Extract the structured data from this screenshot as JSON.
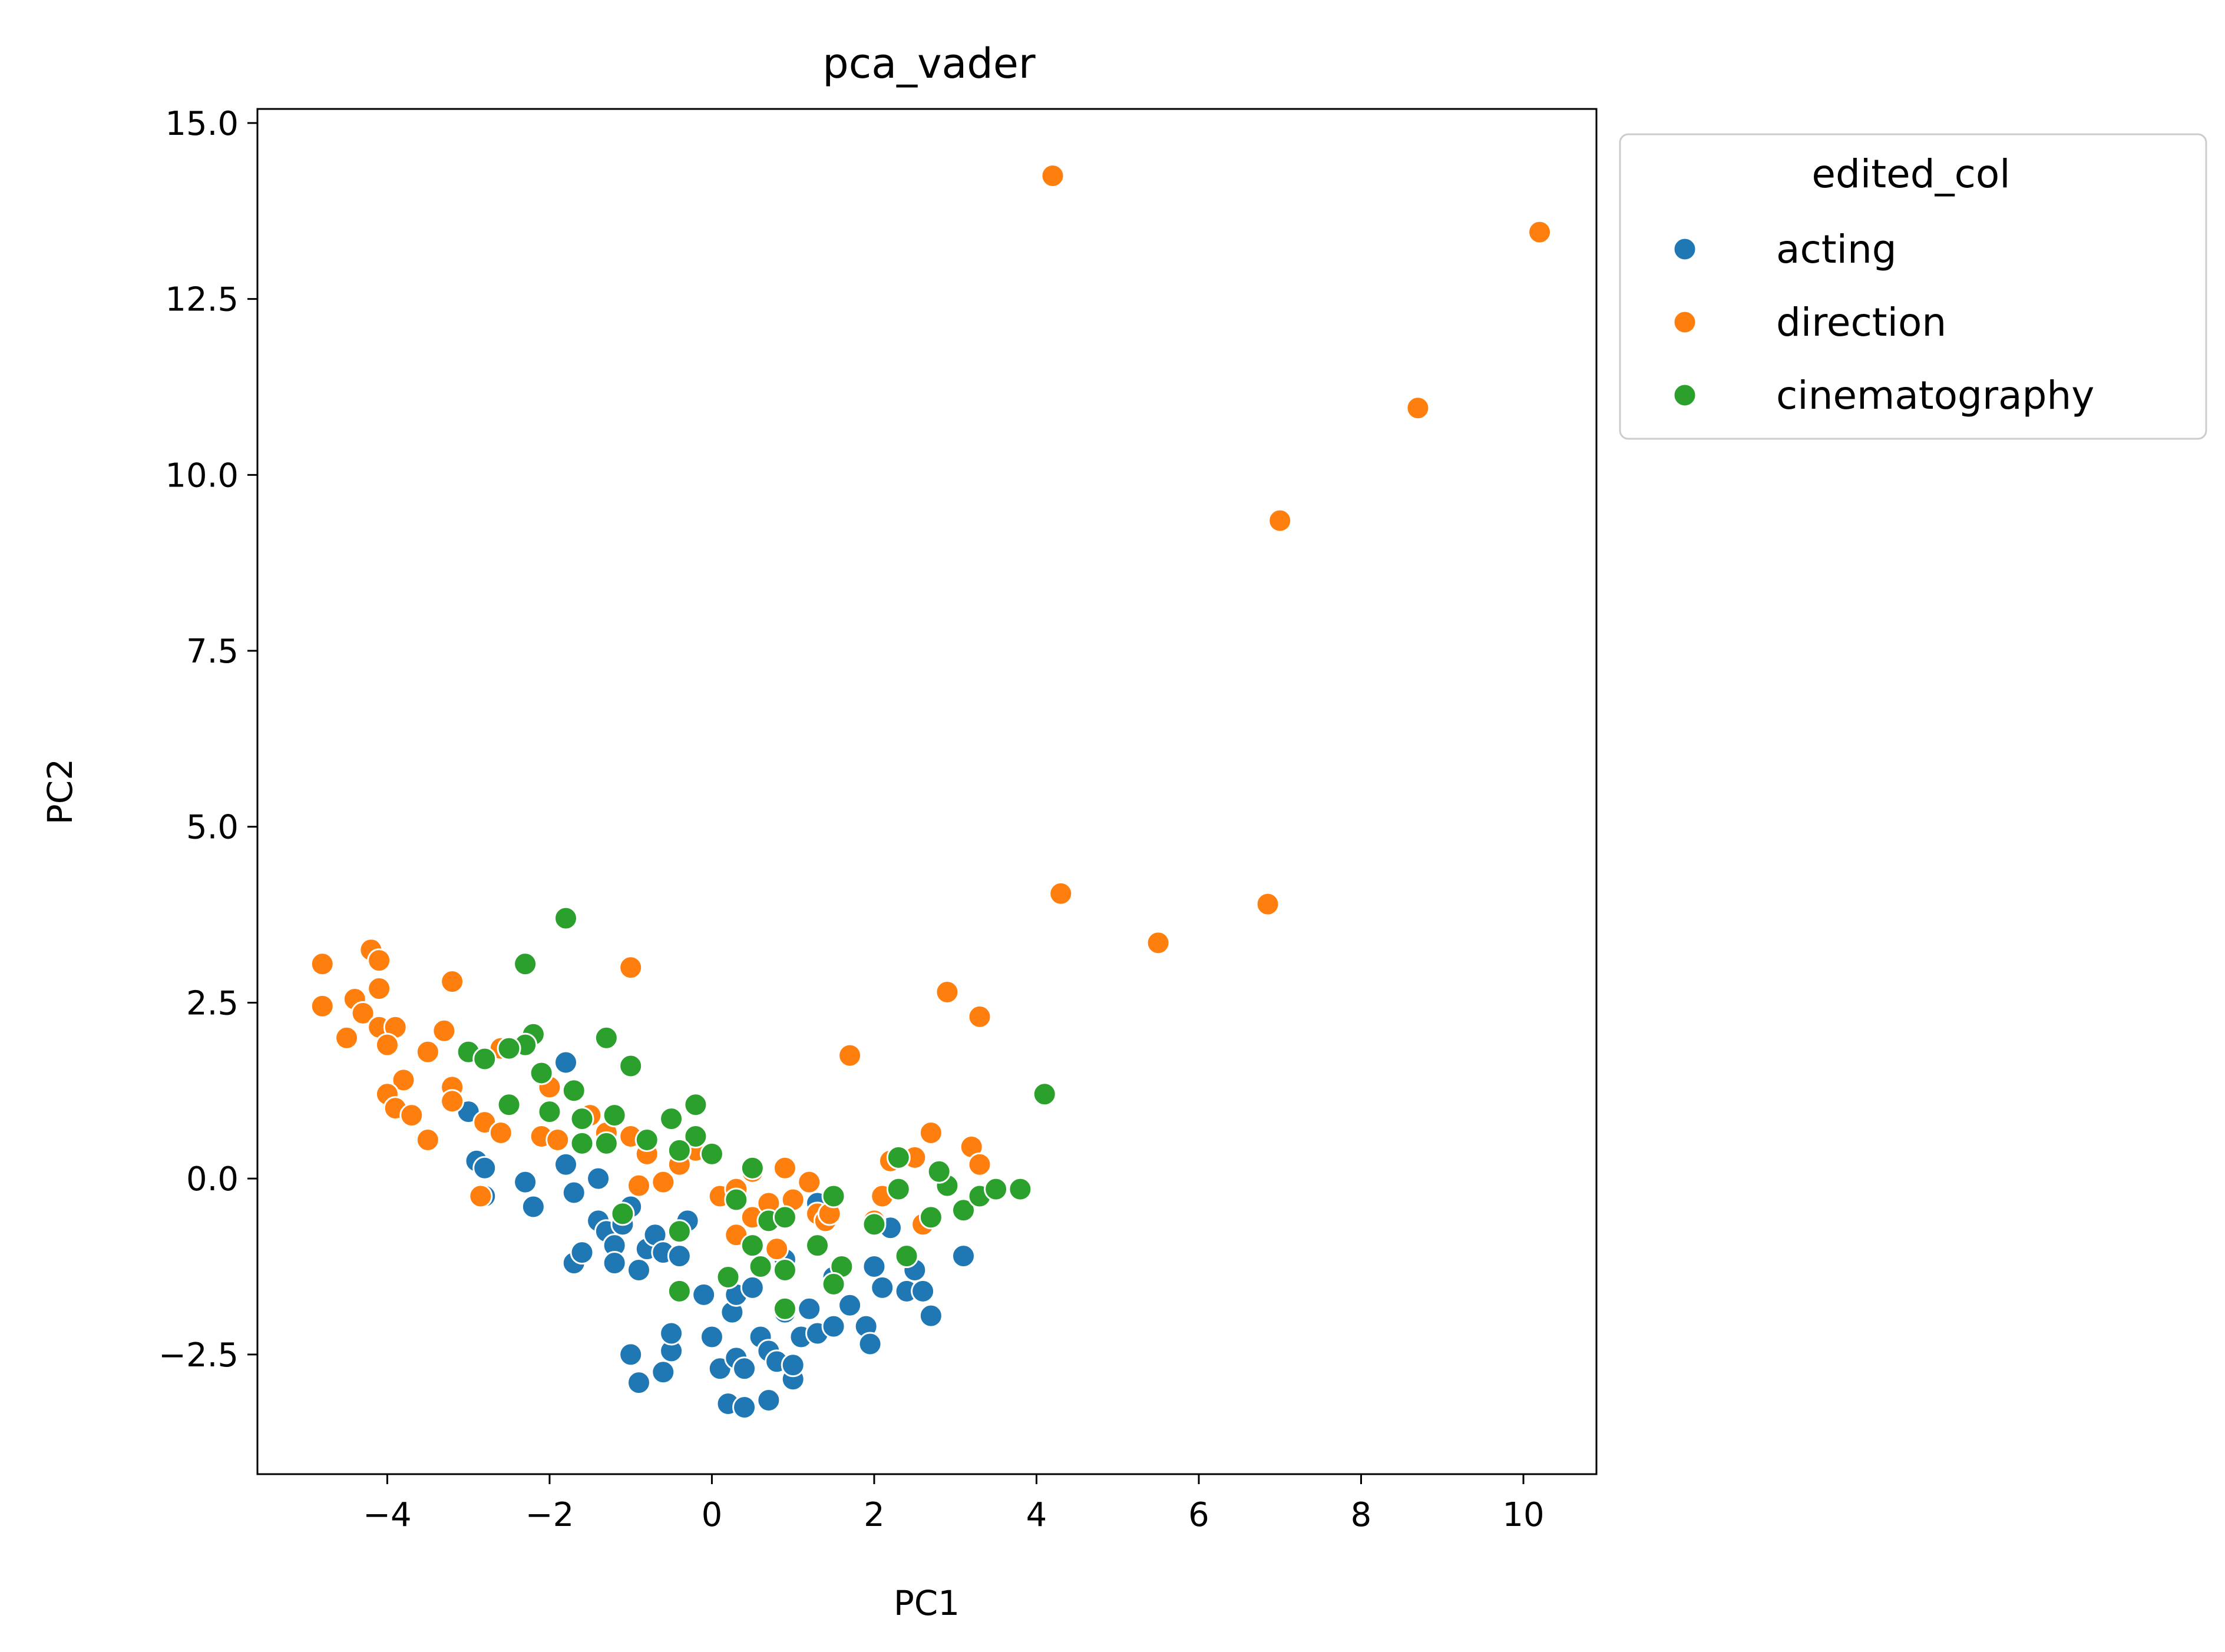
{
  "chart_data": {
    "type": "scatter",
    "title": "pca_vader",
    "xlabel": "PC1",
    "ylabel": "PC2",
    "xlim": [
      -5.6,
      10.9
    ],
    "ylim": [
      -4.2,
      15.2
    ],
    "xticks": [
      -4,
      -2,
      0,
      2,
      4,
      6,
      8,
      10
    ],
    "xtick_labels": [
      "−4",
      "−2",
      "0",
      "2",
      "4",
      "6",
      "8",
      "10"
    ],
    "yticks": [
      -2.5,
      0.0,
      2.5,
      5.0,
      7.5,
      10.0,
      12.5,
      15.0
    ],
    "ytick_labels": [
      "−2.5",
      "0.0",
      "2.5",
      "5.0",
      "7.5",
      "10.0",
      "12.5",
      "15.0"
    ],
    "grid": false,
    "legend": {
      "title": "edited_col",
      "placement": "outside-upper-right"
    },
    "series": [
      {
        "name": "acting",
        "color": "#1f77b4",
        "points": [
          [
            -3.0,
            0.95
          ],
          [
            -2.9,
            0.25
          ],
          [
            -2.8,
            -0.25
          ],
          [
            -2.8,
            0.15
          ],
          [
            -2.3,
            -0.05
          ],
          [
            -2.2,
            -0.4
          ],
          [
            -1.8,
            1.65
          ],
          [
            -1.8,
            0.2
          ],
          [
            -1.7,
            -1.2
          ],
          [
            -1.6,
            -1.05
          ],
          [
            -1.7,
            -0.2
          ],
          [
            -1.4,
            -0.6
          ],
          [
            -1.4,
            0.0
          ],
          [
            -1.3,
            -0.75
          ],
          [
            -1.2,
            -0.95
          ],
          [
            -1.2,
            -1.2
          ],
          [
            -1.1,
            -0.65
          ],
          [
            -1.0,
            -0.4
          ],
          [
            -1.0,
            -2.5
          ],
          [
            -0.9,
            -2.9
          ],
          [
            -0.9,
            -1.3
          ],
          [
            -0.8,
            -1.0
          ],
          [
            -0.7,
            -0.8
          ],
          [
            -0.6,
            -1.05
          ],
          [
            -0.6,
            -2.75
          ],
          [
            -0.5,
            -2.45
          ],
          [
            -0.5,
            -2.2
          ],
          [
            -0.4,
            -1.1
          ],
          [
            -0.3,
            -0.6
          ],
          [
            -0.1,
            -1.65
          ],
          [
            0.0,
            -2.25
          ],
          [
            0.1,
            -2.7
          ],
          [
            0.2,
            -3.2
          ],
          [
            0.25,
            -1.9
          ],
          [
            0.3,
            -1.65
          ],
          [
            0.3,
            -2.55
          ],
          [
            0.4,
            -3.25
          ],
          [
            0.4,
            -2.7
          ],
          [
            0.5,
            -1.55
          ],
          [
            0.55,
            -0.55
          ],
          [
            0.6,
            -2.25
          ],
          [
            0.7,
            -2.45
          ],
          [
            0.7,
            -3.15
          ],
          [
            0.8,
            -2.6
          ],
          [
            0.9,
            -1.9
          ],
          [
            1.0,
            -2.85
          ],
          [
            1.0,
            -2.65
          ],
          [
            1.1,
            -2.25
          ],
          [
            1.2,
            -1.85
          ],
          [
            1.3,
            -2.2
          ],
          [
            1.5,
            -2.1
          ],
          [
            1.5,
            -1.4
          ],
          [
            1.7,
            -1.8
          ],
          [
            1.9,
            -2.1
          ],
          [
            1.95,
            -2.35
          ],
          [
            2.0,
            -1.25
          ],
          [
            2.1,
            -1.55
          ],
          [
            2.2,
            -0.7
          ],
          [
            2.4,
            -1.6
          ],
          [
            2.5,
            -1.3
          ],
          [
            2.6,
            -1.6
          ],
          [
            2.7,
            -1.95
          ],
          [
            3.1,
            -1.1
          ],
          [
            1.3,
            -0.35
          ],
          [
            0.9,
            -1.15
          ]
        ]
      },
      {
        "name": "direction",
        "color": "#ff7f0e",
        "points": [
          [
            4.2,
            14.25
          ],
          [
            10.2,
            13.45
          ],
          [
            8.7,
            10.95
          ],
          [
            7.0,
            9.35
          ],
          [
            4.3,
            4.05
          ],
          [
            5.5,
            3.35
          ],
          [
            6.85,
            3.9
          ],
          [
            2.9,
            2.65
          ],
          [
            3.3,
            2.3
          ],
          [
            1.7,
            1.75
          ],
          [
            -1.0,
            3.0
          ],
          [
            -4.8,
            3.05
          ],
          [
            -4.2,
            3.25
          ],
          [
            -4.1,
            3.1
          ],
          [
            -4.4,
            2.55
          ],
          [
            -4.1,
            2.7
          ],
          [
            -4.8,
            2.45
          ],
          [
            -4.3,
            2.35
          ],
          [
            -4.5,
            2.0
          ],
          [
            -4.1,
            2.15
          ],
          [
            -3.9,
            2.15
          ],
          [
            -4.0,
            1.9
          ],
          [
            -3.2,
            2.8
          ],
          [
            -3.3,
            2.1
          ],
          [
            -3.5,
            1.8
          ],
          [
            -3.8,
            1.4
          ],
          [
            -4.0,
            1.2
          ],
          [
            -3.9,
            1.0
          ],
          [
            -3.7,
            0.9
          ],
          [
            -3.2,
            1.3
          ],
          [
            -3.2,
            1.1
          ],
          [
            -3.5,
            0.55
          ],
          [
            -2.8,
            0.8
          ],
          [
            -2.6,
            0.65
          ],
          [
            -2.6,
            1.85
          ],
          [
            -2.1,
            0.6
          ],
          [
            -1.9,
            0.55
          ],
          [
            -2.0,
            1.3
          ],
          [
            -1.5,
            0.9
          ],
          [
            -1.3,
            0.65
          ],
          [
            -1.0,
            0.6
          ],
          [
            -0.8,
            0.35
          ],
          [
            -0.6,
            -0.05
          ],
          [
            -0.9,
            -0.1
          ],
          [
            -0.2,
            0.4
          ],
          [
            0.1,
            -0.25
          ],
          [
            0.3,
            -0.15
          ],
          [
            0.5,
            0.1
          ],
          [
            0.5,
            -0.55
          ],
          [
            0.7,
            -0.35
          ],
          [
            0.9,
            0.15
          ],
          [
            1.0,
            -0.3
          ],
          [
            1.2,
            -0.05
          ],
          [
            1.3,
            -0.5
          ],
          [
            1.4,
            -0.6
          ],
          [
            1.45,
            -0.5
          ],
          [
            0.8,
            -1.0
          ],
          [
            0.3,
            -0.8
          ],
          [
            2.0,
            -0.6
          ],
          [
            2.1,
            -0.25
          ],
          [
            2.2,
            0.25
          ],
          [
            2.5,
            0.3
          ],
          [
            2.7,
            0.65
          ],
          [
            3.2,
            0.45
          ],
          [
            3.3,
            0.2
          ],
          [
            2.6,
            -0.65
          ],
          [
            -2.85,
            -0.25
          ],
          [
            -0.4,
            0.2
          ]
        ]
      },
      {
        "name": "cinematography",
        "color": "#2ca02c",
        "points": [
          [
            -1.8,
            3.7
          ],
          [
            -2.3,
            3.05
          ],
          [
            -2.2,
            2.05
          ],
          [
            -2.3,
            1.9
          ],
          [
            -1.3,
            2.0
          ],
          [
            -1.0,
            1.6
          ],
          [
            -3.0,
            1.8
          ],
          [
            -2.8,
            1.7
          ],
          [
            -2.5,
            1.85
          ],
          [
            -2.1,
            1.5
          ],
          [
            -2.5,
            1.05
          ],
          [
            -2.0,
            0.95
          ],
          [
            -1.7,
            1.25
          ],
          [
            -1.6,
            0.85
          ],
          [
            -1.2,
            0.9
          ],
          [
            -1.6,
            0.5
          ],
          [
            -1.3,
            0.5
          ],
          [
            -0.8,
            0.55
          ],
          [
            -0.5,
            0.85
          ],
          [
            -0.2,
            1.05
          ],
          [
            -0.2,
            0.6
          ],
          [
            -0.4,
            0.4
          ],
          [
            0.0,
            0.35
          ],
          [
            0.5,
            0.15
          ],
          [
            0.3,
            -0.3
          ],
          [
            0.5,
            -0.95
          ],
          [
            0.7,
            -0.6
          ],
          [
            0.9,
            -0.55
          ],
          [
            0.6,
            -1.25
          ],
          [
            0.9,
            -1.3
          ],
          [
            1.3,
            -0.95
          ],
          [
            1.5,
            -0.25
          ],
          [
            1.6,
            -1.25
          ],
          [
            2.0,
            -0.65
          ],
          [
            2.3,
            -0.15
          ],
          [
            2.3,
            0.3
          ],
          [
            2.4,
            -1.1
          ],
          [
            2.7,
            -0.55
          ],
          [
            2.9,
            -0.1
          ],
          [
            3.1,
            -0.45
          ],
          [
            3.3,
            -0.25
          ],
          [
            3.5,
            -0.15
          ],
          [
            3.8,
            -0.15
          ],
          [
            4.1,
            1.2
          ],
          [
            -0.4,
            -1.6
          ],
          [
            -0.4,
            -0.75
          ],
          [
            0.2,
            -1.4
          ],
          [
            -1.1,
            -0.5
          ],
          [
            0.9,
            -1.85
          ],
          [
            1.5,
            -1.5
          ],
          [
            2.8,
            0.1
          ]
        ]
      }
    ]
  }
}
